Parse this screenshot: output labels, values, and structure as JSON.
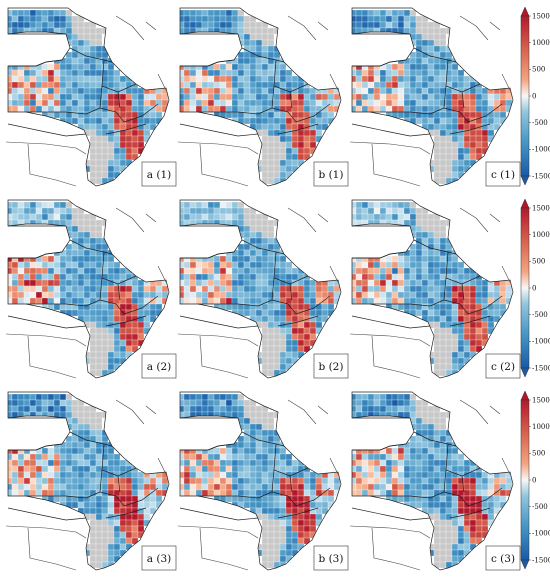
{
  "panels": [
    [
      "a (1)",
      "b (1)",
      "c (1)"
    ],
    [
      "a (2)",
      "b (2)",
      "c (2)"
    ],
    [
      "a (3)",
      "b (3)",
      "c (3)"
    ]
  ],
  "colorbar": {
    "ticks": [
      "1500",
      "1000",
      "500",
      "0",
      "-500",
      "-1000",
      "-1500"
    ],
    "range": [
      -1500,
      1500
    ],
    "extend": "both",
    "colors": {
      "low": "#1a5aa8",
      "mid": "#f2f2f2",
      "high": "#b2182b",
      "no_data": "#c8c8c8"
    }
  }
}
